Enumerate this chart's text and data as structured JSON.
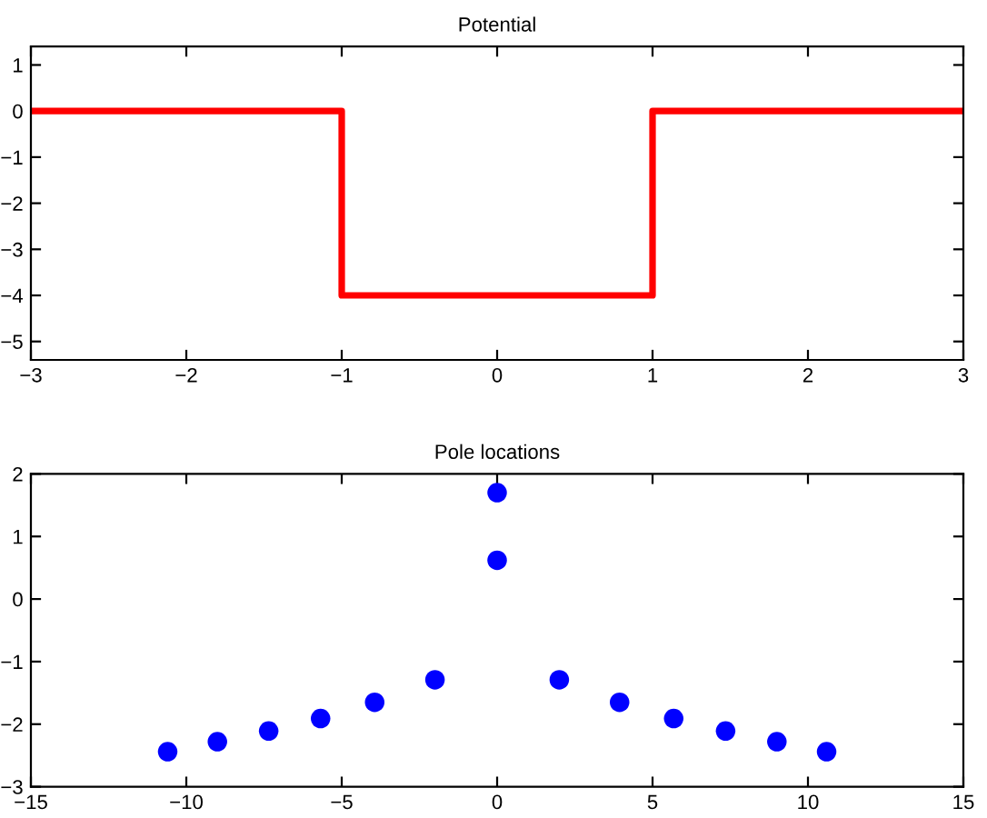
{
  "chart_data": [
    {
      "type": "line",
      "title": "Potential",
      "x": [
        -3,
        -1,
        -1,
        1,
        1,
        3
      ],
      "values": [
        0,
        0,
        -4,
        -4,
        0,
        0
      ],
      "color": "#ff0000",
      "line_style": "solid",
      "xlim": [
        -3,
        3
      ],
      "xticks": [
        -3,
        -2,
        -1,
        0,
        1,
        2,
        3
      ],
      "ylim": [
        -5.4,
        1.4
      ],
      "yticks": [
        -5,
        -4,
        -3,
        -2,
        -1,
        0,
        1
      ]
    },
    {
      "type": "scatter",
      "title": "Pole locations",
      "x": [
        -10.6,
        -9.0,
        -7.35,
        -5.68,
        -3.94,
        -2.0,
        0,
        0,
        2.0,
        3.94,
        5.68,
        7.35,
        9.0,
        10.6
      ],
      "values": [
        -2.44,
        -2.28,
        -2.11,
        -1.91,
        -1.65,
        -1.29,
        1.7,
        0.62,
        -1.29,
        -1.65,
        -1.91,
        -2.11,
        -2.28,
        -2.44
      ],
      "color": "#0000ff",
      "marker": "circle",
      "xlim": [
        -15,
        15
      ],
      "xticks": [
        -15,
        -10,
        -5,
        0,
        5,
        10,
        15
      ],
      "ylim": [
        -3,
        2
      ],
      "yticks": [
        -3,
        -2,
        -1,
        0,
        1,
        2
      ]
    }
  ]
}
